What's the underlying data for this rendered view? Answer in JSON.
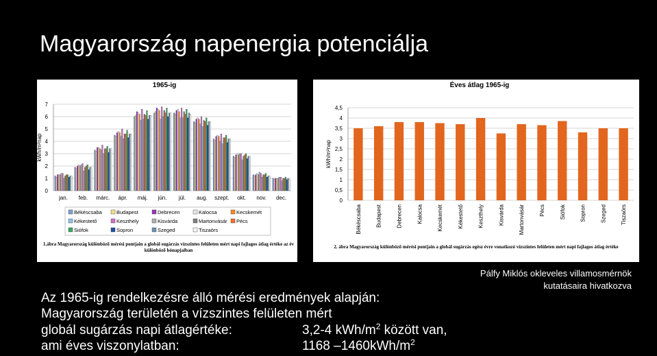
{
  "slide": {
    "title": "Magyarország napenergia potenciálja",
    "credit": [
      "Pálfy Miklós okleveles villamosmérnök",
      "kutatásaira hivatkozva"
    ],
    "body": {
      "intro": "Az 1965-ig rendelkezésre álló mérési eredmények alapján:",
      "line2": "Magyarország területén a vízszintes felületen mért",
      "line3_label": "globál sugárzás napi átlagértéke:",
      "line3_value": "3,2-4 kWh/m",
      "line3_sup": "2",
      "line3_rest": " között van,",
      "line4_label": "ami éves viszonylatban:",
      "line4_value": "1168 –1460kWh/m",
      "line4_sup": "2"
    }
  },
  "chart_data": [
    {
      "type": "bar",
      "title": "1965-ig",
      "y_label": "kWh/m²nap",
      "grid": true,
      "caption": "1.ábra Magyarország különböző mérési pontjain a globál sugárzás vízszintes felületen mért napi fajlagos átlag értéke az év különböző hónapjaiban",
      "categories": [
        "jan.",
        "feb.",
        "márc.",
        "ápr.",
        "máj.",
        "jún.",
        "júl.",
        "aug.",
        "szept.",
        "okt.",
        "nov.",
        "dec."
      ],
      "ylim": [
        0,
        7
      ],
      "yticks": [
        0,
        1,
        2,
        3,
        4,
        5,
        6,
        7
      ],
      "series": [
        {
          "name": "Békéscsaba",
          "color": "#7f9fd8",
          "values": [
            1.2,
            1.9,
            3.3,
            4.5,
            6.0,
            6.3,
            6.3,
            5.6,
            4.2,
            2.8,
            1.3,
            1.0
          ]
        },
        {
          "name": "Budapest",
          "color": "#f2e08a",
          "values": [
            1.1,
            1.8,
            3.2,
            4.4,
            6.1,
            6.4,
            6.2,
            5.5,
            4.1,
            2.7,
            1.2,
            0.9
          ]
        },
        {
          "name": "Debrecen",
          "color": "#9a35b8",
          "values": [
            1.3,
            2.0,
            3.5,
            4.7,
            6.4,
            6.7,
            6.5,
            5.8,
            4.4,
            2.9,
            1.3,
            1.0
          ]
        },
        {
          "name": "Kalocsa",
          "color": "#e8e8e8",
          "values": [
            1.3,
            2.1,
            3.5,
            4.8,
            6.3,
            6.6,
            6.6,
            5.9,
            4.5,
            3.0,
            1.4,
            1.0
          ]
        },
        {
          "name": "Kecskemét",
          "color": "#f28c28",
          "values": [
            1.3,
            2.0,
            3.4,
            4.7,
            6.2,
            6.5,
            6.4,
            5.8,
            4.4,
            2.9,
            1.3,
            1.0
          ]
        },
        {
          "name": "Kékestető",
          "color": "#8fc3e8",
          "values": [
            1.4,
            2.1,
            3.3,
            4.4,
            5.7,
            5.8,
            5.9,
            5.4,
            4.0,
            3.0,
            1.5,
            1.1
          ]
        },
        {
          "name": "Keszthely",
          "color": "#d070c8",
          "values": [
            1.4,
            2.2,
            3.7,
            5.0,
            6.6,
            6.8,
            6.7,
            6.0,
            4.6,
            3.0,
            1.4,
            1.1
          ]
        },
        {
          "name": "Kisvárda",
          "color": "#b0b0b0",
          "values": [
            1.0,
            1.6,
            3.0,
            4.2,
            5.8,
            6.0,
            5.9,
            5.2,
            3.8,
            2.5,
            1.1,
            0.8
          ]
        },
        {
          "name": "Martonvásár",
          "color": "#808080",
          "values": [
            1.2,
            1.9,
            3.4,
            4.6,
            6.2,
            6.5,
            6.4,
            5.7,
            4.3,
            2.8,
            1.3,
            1.0
          ]
        },
        {
          "name": "Pécs",
          "color": "#f07030",
          "values": [
            1.3,
            2.0,
            3.4,
            4.6,
            6.1,
            6.3,
            6.2,
            5.6,
            4.3,
            2.9,
            1.3,
            1.0
          ]
        },
        {
          "name": "Siófok",
          "color": "#3aa860",
          "values": [
            1.3,
            2.1,
            3.6,
            4.9,
            6.5,
            6.7,
            6.6,
            5.9,
            4.5,
            3.0,
            1.4,
            1.1
          ]
        },
        {
          "name": "Sopron",
          "color": "#2050a0",
          "values": [
            1.1,
            1.7,
            3.1,
            4.3,
            5.8,
            6.0,
            5.9,
            5.3,
            3.9,
            2.6,
            1.1,
            0.9
          ]
        },
        {
          "name": "Szeged",
          "color": "#7090b0",
          "values": [
            1.2,
            1.9,
            3.4,
            4.6,
            6.1,
            6.3,
            6.3,
            5.6,
            4.2,
            2.8,
            1.2,
            1.0
          ]
        },
        {
          "name": "Tiszaörs",
          "color": "#f4f4f4",
          "values": [
            1.2,
            1.9,
            3.4,
            4.6,
            6.1,
            6.3,
            6.2,
            5.6,
            4.2,
            2.8,
            1.2,
            0.9
          ]
        }
      ]
    },
    {
      "type": "bar",
      "title": "Éves átlag 1965-ig",
      "y_label": "kWh/m²nap",
      "grid": true,
      "color": "#e2661e",
      "caption": "2. ábra Magyarország különböző mérési pontjain a globál sugárzás egész évre vonatkozó vízszintes felületen mért napi fajlagos átlag értéke",
      "categories": [
        "Békéscsaba",
        "Budapest",
        "Debrecen",
        "Kalocsa",
        "Kecskemét",
        "Kékestető",
        "Keszthely",
        "Kisvárda",
        "Martonvásár",
        "Pécs",
        "Siófok",
        "Sopron",
        "Szeged",
        "Tiszaörs"
      ],
      "values": [
        3.5,
        3.6,
        3.8,
        3.8,
        3.75,
        3.7,
        4.0,
        3.25,
        3.7,
        3.65,
        3.85,
        3.3,
        3.5,
        3.5
      ],
      "ylim": [
        0,
        4.5
      ],
      "yticks": [
        0,
        {
          "value": 0.5,
          "label": "0,5"
        },
        1,
        {
          "value": 1.5,
          "label": "1,5"
        },
        2,
        {
          "value": 2.5,
          "label": "2,5"
        },
        3,
        {
          "value": 3.5,
          "label": "3,5"
        },
        4,
        {
          "value": 4.5,
          "label": "4,5"
        }
      ]
    }
  ]
}
